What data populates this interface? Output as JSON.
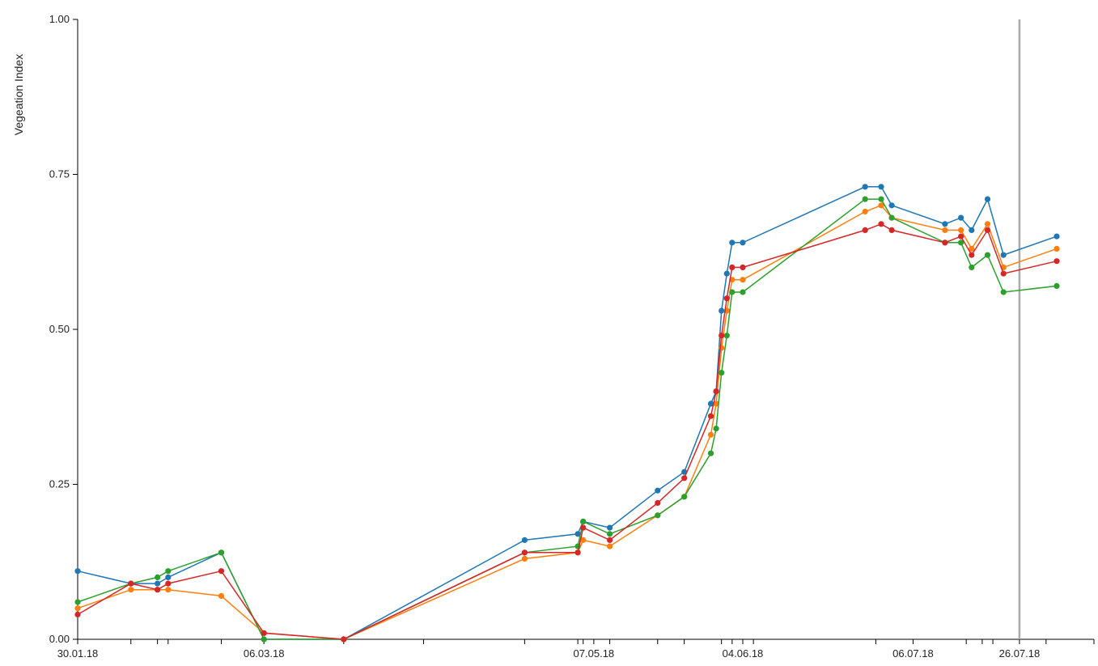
{
  "chart_data": {
    "type": "line",
    "title": "",
    "xlabel": "",
    "ylabel": "Vegeation Index",
    "ylim": [
      0,
      1
    ],
    "yticks": [
      "0.00",
      "0.25",
      "0.50",
      "0.75",
      "1.00"
    ],
    "xlim": [
      "2018-01-30",
      "2018-08-09"
    ],
    "xtick_labels": [
      {
        "date": "2018-01-30",
        "label": "30.01.18"
      },
      {
        "date": "2018-03-06",
        "label": "06.03.18"
      },
      {
        "date": "2018-05-07",
        "label": "07.05.18"
      },
      {
        "date": "2018-06-04",
        "label": "04.06.18"
      },
      {
        "date": "2018-07-06",
        "label": "06.07.18"
      },
      {
        "date": "2018-07-26",
        "label": "26.07.18"
      }
    ],
    "x_minor_ticks": [
      "2018-02-09",
      "2018-02-14",
      "2018-02-16",
      "2018-02-26",
      "2018-03-21",
      "2018-04-05",
      "2018-04-24",
      "2018-05-04",
      "2018-05-05",
      "2018-05-10",
      "2018-05-19",
      "2018-05-24",
      "2018-05-31",
      "2018-06-02",
      "2018-06-06",
      "2018-06-29",
      "2018-07-16",
      "2018-07-19",
      "2018-07-21",
      "2018-07-31",
      "2018-08-09"
    ],
    "vertical_marker": "2018-07-26",
    "grid": false,
    "legend": "none",
    "x": [
      "2018-01-30",
      "2018-02-09",
      "2018-02-14",
      "2018-02-16",
      "2018-02-26",
      "2018-03-06",
      "2018-03-21",
      "2018-04-24",
      "2018-05-04",
      "2018-05-05",
      "2018-05-10",
      "2018-05-19",
      "2018-05-24",
      "2018-05-29",
      "2018-05-30",
      "2018-05-31",
      "2018-06-01",
      "2018-06-02",
      "2018-06-04",
      "2018-06-27",
      "2018-06-30",
      "2018-07-02",
      "2018-07-12",
      "2018-07-15",
      "2018-07-17",
      "2018-07-20",
      "2018-07-23",
      "2018-08-02",
      "2018-08-10"
    ],
    "series": [
      {
        "color": "#1f77b4",
        "values": [
          0.11,
          0.09,
          0.09,
          0.1,
          0.14,
          0.0,
          0.0,
          0.16,
          0.17,
          0.19,
          0.18,
          0.24,
          0.27,
          0.38,
          0.4,
          0.53,
          0.59,
          0.64,
          0.64,
          0.73,
          0.73,
          0.7,
          0.67,
          0.68,
          0.66,
          0.71,
          0.62,
          0.65,
          0.65
        ]
      },
      {
        "color": "#ff7f0e",
        "values": [
          0.05,
          0.08,
          0.08,
          0.08,
          0.07,
          0.01,
          0.0,
          0.13,
          0.14,
          0.16,
          0.15,
          0.2,
          0.23,
          0.33,
          0.38,
          0.47,
          0.53,
          0.58,
          0.58,
          0.69,
          0.7,
          0.68,
          0.66,
          0.66,
          0.63,
          0.67,
          0.6,
          0.63,
          0.63
        ]
      },
      {
        "color": "#2ca02c",
        "values": [
          0.06,
          0.09,
          0.1,
          0.11,
          0.14,
          0.0,
          0.0,
          0.14,
          0.15,
          0.19,
          0.17,
          0.2,
          0.23,
          0.3,
          0.34,
          0.43,
          0.49,
          0.56,
          0.56,
          0.71,
          0.71,
          0.68,
          0.64,
          0.64,
          0.6,
          0.62,
          0.56,
          0.57,
          0.57
        ]
      },
      {
        "color": "#d62728",
        "values": [
          0.04,
          0.09,
          0.08,
          0.09,
          0.11,
          0.01,
          0.0,
          0.14,
          0.14,
          0.18,
          0.16,
          0.22,
          0.26,
          0.36,
          0.4,
          0.49,
          0.55,
          0.6,
          0.6,
          0.66,
          0.67,
          0.66,
          0.64,
          0.65,
          0.62,
          0.66,
          0.59,
          0.61,
          0.61
        ]
      }
    ]
  }
}
